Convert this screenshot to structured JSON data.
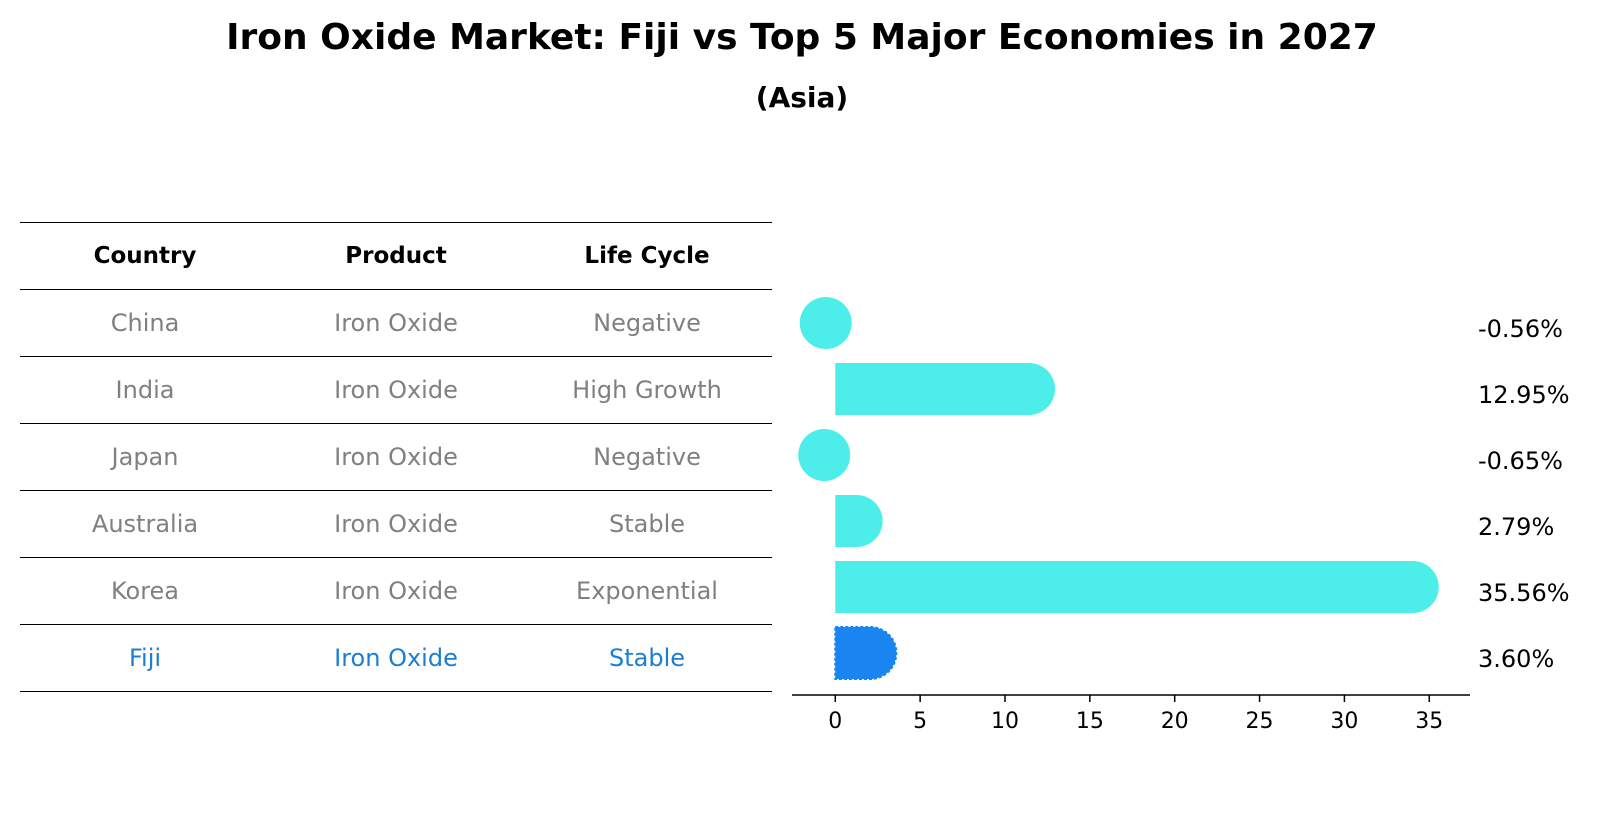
{
  "title": "Iron Oxide Market: Fiji vs Top 5 Major Economies in 2027",
  "subtitle": "(Asia)",
  "table": {
    "headers": [
      "Country",
      "Product",
      "Life Cycle"
    ],
    "rows": [
      [
        "China",
        "Iron Oxide",
        "Negative"
      ],
      [
        "India",
        "Iron Oxide",
        "High Growth"
      ],
      [
        "Japan",
        "Iron Oxide",
        "Negative"
      ],
      [
        "Australia",
        "Iron Oxide",
        "Stable"
      ],
      [
        "Korea",
        "Iron Oxide",
        "Exponential"
      ],
      [
        "Fiji",
        "Iron Oxide",
        "Stable"
      ]
    ],
    "highlight_row": 5
  },
  "colors": {
    "bar": "#4deeea",
    "highlight_bar": "#1a85f0",
    "text_muted": "#808080",
    "text_highlight": "#1a7fd4"
  },
  "chart_data": {
    "type": "bar",
    "orientation": "horizontal",
    "categories": [
      "China",
      "India",
      "Japan",
      "Australia",
      "Korea",
      "Fiji"
    ],
    "values": [
      -0.56,
      12.95,
      -0.65,
      2.79,
      35.56,
      3.6
    ],
    "value_labels": [
      "-0.56%",
      "12.95%",
      "-0.65%",
      "2.79%",
      "35.56%",
      "3.60%"
    ],
    "highlight": "Fiji",
    "xticks": [
      0,
      5,
      10,
      15,
      20,
      25,
      30,
      35
    ],
    "xlim": [
      -2.55,
      37.4
    ]
  }
}
